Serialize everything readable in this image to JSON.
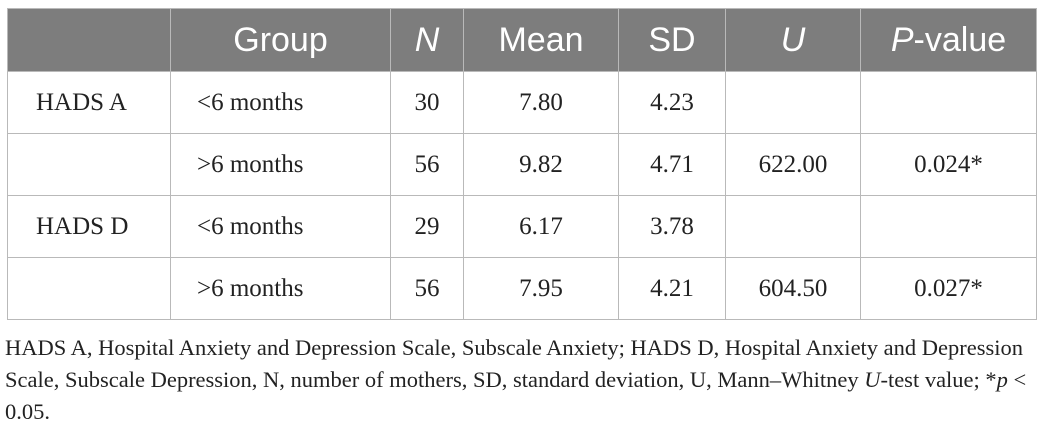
{
  "table": {
    "headers": {
      "measure": "",
      "group": "Group",
      "n": "N",
      "mean": "Mean",
      "sd": "SD",
      "u": "U",
      "p_italic": "P",
      "p_rest": "-value"
    },
    "rows": [
      {
        "measure": "HADS A",
        "group": "<6 months",
        "n": "30",
        "mean": "7.80",
        "sd": "4.23",
        "u": "",
        "p": ""
      },
      {
        "measure": "",
        "group": ">6 months",
        "n": "56",
        "mean": "9.82",
        "sd": "4.71",
        "u": "622.00",
        "p": "0.024*"
      },
      {
        "measure": "HADS D",
        "group": "<6 months",
        "n": "29",
        "mean": "6.17",
        "sd": "3.78",
        "u": "",
        "p": ""
      },
      {
        "measure": "",
        "group": ">6 months",
        "n": "56",
        "mean": "7.95",
        "sd": "4.21",
        "u": "604.50",
        "p": "0.027*"
      }
    ]
  },
  "footnote": {
    "part1": "HADS A, Hospital Anxiety and Depression Scale, Subscale Anxiety; HADS D, Hospital Anxiety and Depression Scale, Subscale Depression, N, number of mothers, SD, standard deviation, U, Mann–Whitney ",
    "u_italic": "U",
    "part2": "-test value; *",
    "p_italic": "p",
    "part3": " < 0.05."
  }
}
